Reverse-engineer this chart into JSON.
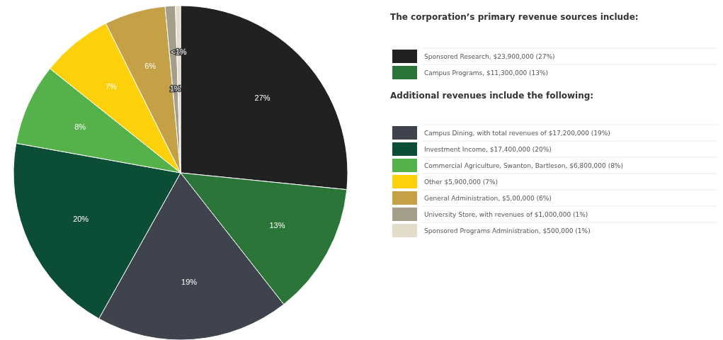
{
  "chart_data": {
    "type": "pie",
    "title": "The corporation’s primary revenue sources include:",
    "subtitle": "Additional revenues include the following:",
    "categories": [
      "Sponsored Research, $23,900,000 (27%)",
      "Campus Programs, $11,300,000 (13%)",
      "Campus Dining, with total revenues of $17,200,000 (19%)",
      "Investment Income, $17,400,000 (20%)",
      "Commercial Agriculture, Swanton, Bartleson, $6,800,000 (8%)",
      "Other $5,900,000 (7%)",
      "General Administration, $5,00,000 (6%)",
      "University Store, with revenues of $1,000,000 (1%)",
      "Sponsored Programs Administration, $500,000 (1%)"
    ],
    "values": [
      27,
      13,
      19,
      20,
      8,
      7,
      6,
      1,
      0.5
    ],
    "colors": [
      "#202120",
      "#2c7538",
      "#3e434d",
      "#0b4d35",
      "#55b24b",
      "#fcd00b",
      "#c4a047",
      "#a39f8c",
      "#e3dccb"
    ],
    "value_labels": [
      "27%",
      "13%",
      "19%",
      "20%",
      "8%",
      "7%",
      "6%",
      "1%",
      "<1%"
    ],
    "legend": "right"
  }
}
